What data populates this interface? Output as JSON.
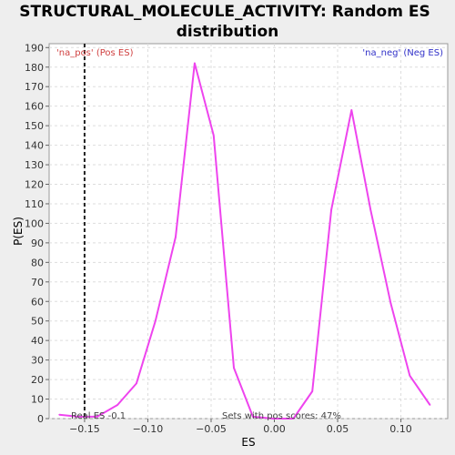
{
  "chart_data": {
    "type": "line",
    "title_line1": "STRUCTURAL_MOLECULE_ACTIVITY: Random ES",
    "title_line2": "distribution",
    "xlabel": "ES",
    "ylabel": "P(ES)",
    "xlim": [
      -0.178,
      0.137
    ],
    "ylim": [
      0,
      192
    ],
    "xticks": [
      -0.15,
      -0.1,
      -0.05,
      0.0,
      0.05,
      0.1
    ],
    "xtick_labels": [
      "−0.15",
      "−0.10",
      "−0.05",
      "0.00",
      "0.05",
      "0.10"
    ],
    "yticks": [
      0,
      10,
      20,
      30,
      40,
      50,
      60,
      70,
      80,
      90,
      100,
      110,
      120,
      130,
      140,
      150,
      160,
      170,
      180,
      190
    ],
    "grid": true,
    "series": [
      {
        "color": "#ee44ee",
        "x": [
          -0.17,
          -0.155,
          -0.14,
          -0.124,
          -0.109,
          -0.094,
          -0.078,
          -0.063,
          -0.048,
          -0.032,
          -0.017,
          -0.001,
          0.015,
          0.03,
          0.045,
          0.061,
          0.076,
          0.092,
          0.107,
          0.123
        ],
        "values": [
          2,
          1,
          1,
          7,
          18,
          50,
          93,
          182,
          145,
          26,
          1,
          0,
          0,
          14,
          107,
          158,
          107,
          59,
          22,
          7
        ]
      }
    ],
    "real_es_x": -0.15,
    "legend_pos": "'na_pos' (Pos ES)",
    "legend_neg": "'na_neg' (Neg ES)",
    "real_es_label": "Real ES -0.1",
    "pos_scores_label": "Sets with pos scores: 47%"
  }
}
